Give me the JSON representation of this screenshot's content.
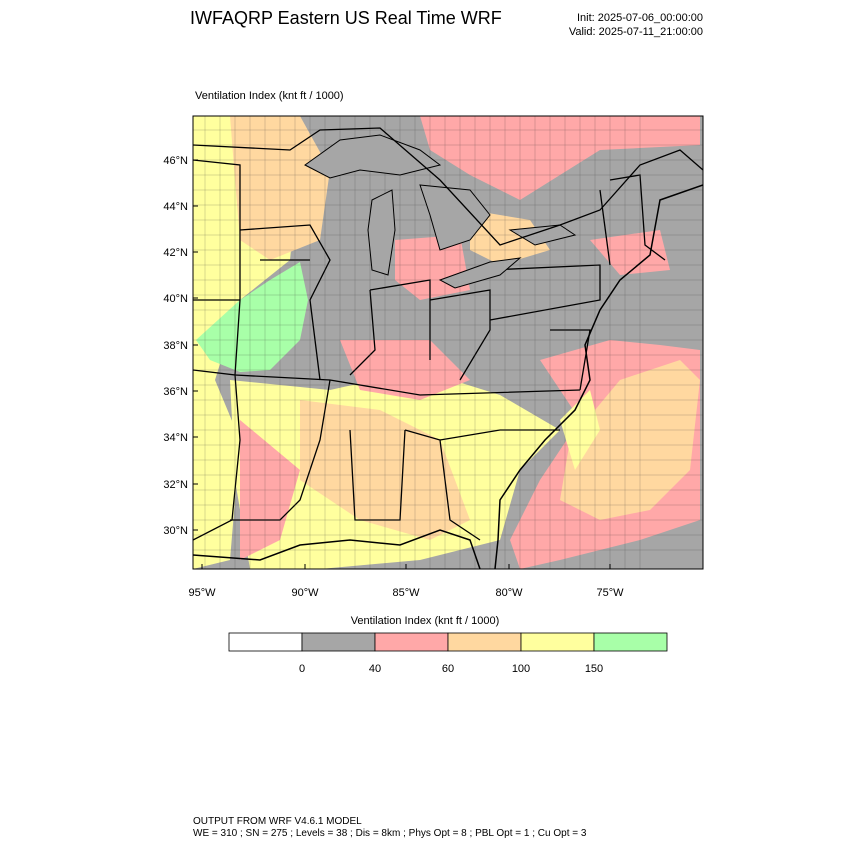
{
  "header": {
    "title": "IWFAQRP Eastern US Real Time WRF",
    "init": "Init: 2025-07-06_00:00:00",
    "valid": "Valid: 2025-07-11_21:00:00"
  },
  "map": {
    "field_label": "Ventilation Index   (knt ft / 1000)",
    "lat_labels": [
      "46°N",
      "44°N",
      "42°N",
      "40°N",
      "38°N",
      "36°N",
      "34°N",
      "32°N",
      "30°N"
    ],
    "lon_labels": [
      "95°W",
      "90°W",
      "85°W",
      "80°W",
      "75°W"
    ]
  },
  "colorbar": {
    "title": "Ventilation Index  (knt ft / 1000)",
    "ticks": [
      "0",
      "40",
      "60",
      "100",
      "150"
    ],
    "colors": [
      "#ffffff",
      "#a6a6a6",
      "#ffa8a8",
      "#ffd8a0",
      "#ffff9e",
      "#a8ffa8"
    ]
  },
  "footer": {
    "line1": "OUTPUT FROM WRF V4.6.1 MODEL",
    "line2": "WE = 310 ; SN = 275 ; Levels = 38 ; Dis = 8km ; Phys Opt = 8 ; PBL Opt = 1 ; Cu Opt = 3"
  }
}
